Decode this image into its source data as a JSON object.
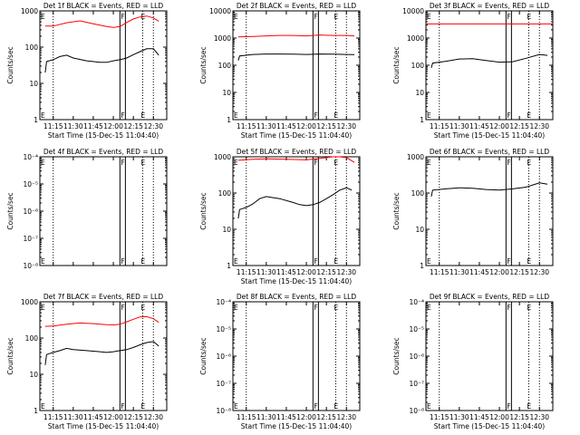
{
  "chart_data": [
    {
      "title": "Det 1f BLACK = Events, RED = LLD",
      "type": "line",
      "ylabel": "Counts/sec",
      "xlabel": "Start Time (15-Dec-15 11:04:40)",
      "x_ticks": [
        "11:15",
        "11:30",
        "11:45",
        "12:00",
        "12:15",
        "12:30"
      ],
      "y_ticks": [
        "1",
        "10",
        "100",
        "1000"
      ],
      "ylim": [
        1,
        1000
      ],
      "y_scale": "log",
      "markers": [
        {
          "label": "F",
          "time": "12:07"
        },
        {
          "label": "E",
          "time": "12:22"
        }
      ],
      "series": [
        {
          "name": "LLD",
          "color": "#ff0000",
          "x": [
            "11:09",
            "11:15",
            "11:25",
            "11:35",
            "11:45",
            "11:55",
            "12:00",
            "12:05",
            "12:10",
            "12:15",
            "12:20",
            "12:25",
            "12:30",
            "12:34"
          ],
          "values": [
            380,
            380,
            470,
            530,
            440,
            370,
            350,
            370,
            480,
            600,
            680,
            720,
            640,
            520
          ]
        },
        {
          "name": "Events",
          "color": "#000000",
          "x": [
            "11:09",
            "11:10",
            "11:15",
            "11:20",
            "11:25",
            "11:30",
            "11:40",
            "11:50",
            "11:55",
            "12:00",
            "12:05",
            "12:10",
            "12:15",
            "12:20",
            "12:25",
            "12:30",
            "12:34"
          ],
          "values": [
            20,
            40,
            45,
            55,
            60,
            50,
            42,
            38,
            38,
            42,
            45,
            50,
            62,
            75,
            90,
            90,
            60
          ]
        }
      ]
    },
    {
      "title": "Det 2f BLACK = Events, RED = LLD",
      "type": "line",
      "ylabel": "Counts/sec",
      "xlabel": "Start Time (15-Dec-15 11:04:40)",
      "x_ticks": [
        "11:15",
        "11:30",
        "11:45",
        "12:00",
        "12:15",
        "12:30"
      ],
      "y_ticks": [
        "1",
        "10",
        "100",
        "1000",
        "10000"
      ],
      "ylim": [
        1,
        10000
      ],
      "y_scale": "log",
      "markers": [
        {
          "label": "F",
          "time": "12:07"
        },
        {
          "label": "E",
          "time": "12:22"
        }
      ],
      "series": [
        {
          "name": "LLD",
          "color": "#ff0000",
          "x": [
            "11:09",
            "11:20",
            "11:30",
            "11:40",
            "11:50",
            "12:00",
            "12:10",
            "12:20",
            "12:30",
            "12:36"
          ],
          "values": [
            1100,
            1150,
            1200,
            1250,
            1250,
            1200,
            1300,
            1250,
            1250,
            1200
          ]
        },
        {
          "name": "Events",
          "color": "#000000",
          "x": [
            "11:09",
            "11:10",
            "11:20",
            "11:30",
            "11:40",
            "11:50",
            "12:00",
            "12:10",
            "12:20",
            "12:30",
            "12:36"
          ],
          "values": [
            150,
            220,
            250,
            260,
            260,
            255,
            250,
            260,
            255,
            250,
            245
          ]
        }
      ]
    },
    {
      "title": "Det 3f BLACK = Events, RED = LLD",
      "type": "line",
      "ylabel": "Counts/sec",
      "xlabel": "Start Time (15-Dec-15 11:04:40)",
      "x_ticks": [
        "11:15",
        "11:30",
        "11:45",
        "12:00",
        "12:15",
        "12:30"
      ],
      "y_ticks": [
        "1",
        "10",
        "100",
        "1000",
        "10000"
      ],
      "ylim": [
        1,
        10000
      ],
      "y_scale": "log",
      "markers": [
        {
          "label": "F",
          "time": "12:07"
        },
        {
          "label": "E",
          "time": "12:22"
        }
      ],
      "series": [
        {
          "name": "LLD",
          "color": "#ff0000",
          "x": [
            "11:04",
            "12:40"
          ],
          "values": [
            3300,
            3300
          ]
        },
        {
          "name": "Events",
          "color": "#000000",
          "x": [
            "11:09",
            "11:10",
            "11:20",
            "11:30",
            "11:40",
            "11:50",
            "12:00",
            "12:10",
            "12:20",
            "12:30",
            "12:36"
          ],
          "values": [
            80,
            120,
            140,
            170,
            175,
            150,
            130,
            135,
            180,
            250,
            230
          ]
        }
      ]
    },
    {
      "title": "Det 4f BLACK = Events, RED = LLD",
      "type": "line",
      "ylabel": "Counts/sec",
      "xlabel": "",
      "x_ticks": [],
      "y_ticks": [
        "10⁻⁸",
        "10⁻⁷",
        "10⁻⁶",
        "10⁻⁵",
        "10⁻⁴"
      ],
      "ylim": [
        1e-08,
        0.0001
      ],
      "y_scale": "log",
      "markers": [
        {
          "label": "F",
          "time": "12:07"
        },
        {
          "label": "E",
          "time": "12:22"
        }
      ],
      "series": []
    },
    {
      "title": "Det 5f BLACK = Events, RED = LLD",
      "type": "line",
      "ylabel": "Counts/sec",
      "xlabel": "Start Time (15-Dec-15 11:04:40)",
      "x_ticks": [
        "11:15",
        "11:30",
        "11:45",
        "12:00",
        "12:15",
        "12:30"
      ],
      "y_ticks": [
        "1",
        "10",
        "100",
        "1000"
      ],
      "ylim": [
        1,
        1000
      ],
      "y_scale": "log",
      "markers": [
        {
          "label": "F",
          "time": "12:07"
        },
        {
          "label": "E",
          "time": "12:22"
        }
      ],
      "series": [
        {
          "name": "LLD",
          "color": "#ff0000",
          "x": [
            "11:09",
            "11:20",
            "11:30",
            "11:45",
            "12:00",
            "12:10",
            "12:20",
            "12:25",
            "12:30",
            "12:36"
          ],
          "values": [
            800,
            850,
            880,
            850,
            820,
            900,
            1050,
            1100,
            950,
            700
          ]
        },
        {
          "name": "Events",
          "color": "#000000",
          "x": [
            "11:09",
            "11:10",
            "11:15",
            "11:20",
            "11:25",
            "11:30",
            "11:40",
            "11:50",
            "11:55",
            "12:00",
            "12:05",
            "12:10",
            "12:15",
            "12:20",
            "12:25",
            "12:30",
            "12:34"
          ],
          "values": [
            20,
            35,
            40,
            50,
            70,
            80,
            70,
            55,
            48,
            45,
            48,
            55,
            70,
            90,
            120,
            140,
            120
          ]
        }
      ]
    },
    {
      "title": "Det 6f BLACK = Events, RED = LLD",
      "type": "line",
      "ylabel": "Counts/sec",
      "xlabel": "",
      "x_ticks": [
        "11:15",
        "11:30",
        "11:45",
        "12:00",
        "12:15",
        "12:30"
      ],
      "y_ticks": [
        "1",
        "10",
        "100",
        "1000"
      ],
      "ylim": [
        1,
        1000
      ],
      "y_scale": "log",
      "markers": [
        {
          "label": "F",
          "time": "12:07"
        },
        {
          "label": "E",
          "time": "12:22"
        }
      ],
      "series": [
        {
          "name": "Events",
          "color": "#000000",
          "x": [
            "11:09",
            "11:10",
            "11:20",
            "11:30",
            "11:40",
            "11:50",
            "12:00",
            "12:10",
            "12:20",
            "12:30",
            "12:36"
          ],
          "values": [
            80,
            120,
            130,
            140,
            135,
            125,
            120,
            130,
            145,
            190,
            175
          ]
        }
      ]
    },
    {
      "title": "Det 7f BLACK = Events, RED = LLD",
      "type": "line",
      "ylabel": "Counts/sec",
      "xlabel": "Start Time (15-Dec-15 11:04:40)",
      "x_ticks": [
        "11:15",
        "11:30",
        "11:45",
        "12:00",
        "12:15",
        "12:30"
      ],
      "y_ticks": [
        "1",
        "10",
        "100",
        "1000"
      ],
      "ylim": [
        1,
        1000
      ],
      "y_scale": "log",
      "markers": [
        {
          "label": "F",
          "time": "12:07"
        },
        {
          "label": "E",
          "time": "12:22"
        }
      ],
      "series": [
        {
          "name": "LLD",
          "color": "#ff0000",
          "x": [
            "11:09",
            "11:15",
            "11:25",
            "11:35",
            "11:45",
            "11:55",
            "12:00",
            "12:05",
            "12:10",
            "12:15",
            "12:20",
            "12:25",
            "12:30",
            "12:34"
          ],
          "values": [
            210,
            215,
            240,
            260,
            250,
            235,
            230,
            240,
            280,
            330,
            380,
            390,
            340,
            270
          ]
        },
        {
          "name": "Events",
          "color": "#000000",
          "x": [
            "11:09",
            "11:10",
            "11:15",
            "11:20",
            "11:25",
            "11:30",
            "11:40",
            "11:50",
            "11:55",
            "12:00",
            "12:05",
            "12:10",
            "12:15",
            "12:20",
            "12:25",
            "12:30",
            "12:34"
          ],
          "values": [
            18,
            35,
            40,
            45,
            52,
            48,
            45,
            42,
            40,
            42,
            45,
            48,
            55,
            65,
            75,
            80,
            60
          ]
        }
      ]
    },
    {
      "title": "Det 8f BLACK = Events, RED = LLD",
      "type": "line",
      "ylabel": "Counts/sec",
      "xlabel": "Start Time (15-Dec-15 11:04:40)",
      "x_ticks": [
        "11:15",
        "11:30",
        "11:45",
        "12:00",
        "12:15",
        "12:30"
      ],
      "y_ticks": [
        "10⁻⁸",
        "10⁻⁷",
        "10⁻⁶",
        "10⁻⁵",
        "10⁻⁴"
      ],
      "ylim": [
        1e-08,
        0.0001
      ],
      "y_scale": "log",
      "markers": [
        {
          "label": "F",
          "time": "12:07"
        },
        {
          "label": "E",
          "time": "12:22"
        }
      ],
      "series": []
    },
    {
      "title": "Det 9f BLACK = Events, RED = LLD",
      "type": "line",
      "ylabel": "Counts/sec",
      "xlabel": "Start Time (15-Dec-15 11:04:40)",
      "x_ticks": [
        "11:15",
        "11:30",
        "11:45",
        "12:00",
        "12:15",
        "12:30"
      ],
      "y_ticks": [
        "10⁻⁸",
        "10⁻⁷",
        "10⁻⁶",
        "10⁻⁵",
        "10⁻⁴"
      ],
      "ylim": [
        1e-08,
        0.0001
      ],
      "y_scale": "log",
      "markers": [
        {
          "label": "F",
          "time": "12:07"
        },
        {
          "label": "E",
          "time": "12:22"
        }
      ],
      "series": []
    }
  ]
}
